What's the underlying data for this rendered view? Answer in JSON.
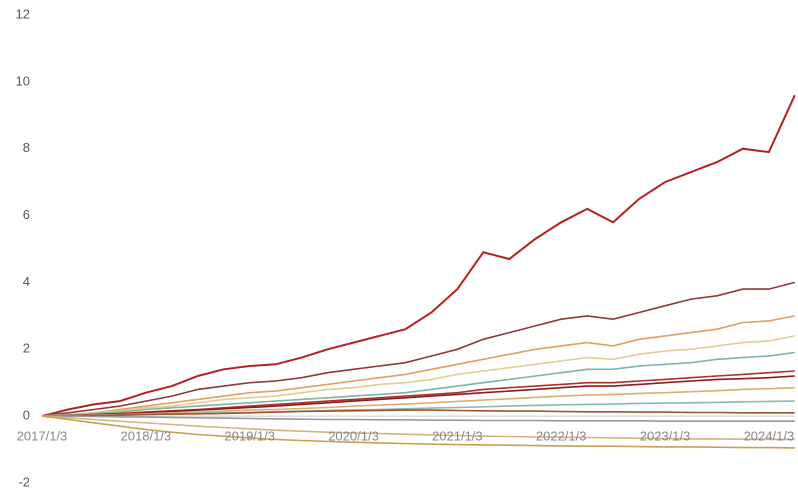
{
  "chart_data": {
    "type": "line",
    "x": [
      "2017/1/3",
      null,
      null,
      null,
      "2018/1/3",
      null,
      null,
      null,
      "2019/1/3",
      null,
      null,
      null,
      "2020/1/3",
      null,
      null,
      null,
      "2021/1/3",
      null,
      null,
      null,
      "2022/1/3",
      null,
      null,
      null,
      "2023/1/3",
      null,
      null,
      null,
      "2024/1/3",
      null
    ],
    "ylim": [
      -2,
      12
    ],
    "yticks": [
      -2,
      0,
      2,
      4,
      6,
      8,
      10,
      12
    ],
    "grid": false,
    "series": [
      {
        "color": "#b22222",
        "values": [
          0,
          0.2,
          0.35,
          0.45,
          0.7,
          0.9,
          1.2,
          1.4,
          1.5,
          1.55,
          1.75,
          2.0,
          2.2,
          2.4,
          2.6,
          3.1,
          3.8,
          4.9,
          4.7,
          5.3,
          5.8,
          6.2,
          5.8,
          6.5,
          7.0,
          7.3,
          7.6,
          8.0,
          7.9,
          9.6
        ]
      },
      {
        "color": "#8b3a3a",
        "values": [
          0,
          0.1,
          0.2,
          0.3,
          0.45,
          0.6,
          0.8,
          0.9,
          1.0,
          1.05,
          1.15,
          1.3,
          1.4,
          1.5,
          1.6,
          1.8,
          2.0,
          2.3,
          2.5,
          2.7,
          2.9,
          3.0,
          2.9,
          3.1,
          3.3,
          3.5,
          3.6,
          3.8,
          3.8,
          4.0
        ]
      },
      {
        "color": "#e0a060",
        "values": [
          0,
          0.05,
          0.1,
          0.2,
          0.3,
          0.4,
          0.5,
          0.6,
          0.7,
          0.75,
          0.85,
          0.95,
          1.05,
          1.15,
          1.25,
          1.4,
          1.55,
          1.7,
          1.85,
          2.0,
          2.1,
          2.2,
          2.1,
          2.3,
          2.4,
          2.5,
          2.6,
          2.8,
          2.85,
          3.0
        ]
      },
      {
        "color": "#e0d090",
        "values": [
          0,
          0.05,
          0.1,
          0.15,
          0.25,
          0.3,
          0.4,
          0.5,
          0.55,
          0.6,
          0.7,
          0.8,
          0.85,
          0.95,
          1.0,
          1.1,
          1.25,
          1.35,
          1.45,
          1.55,
          1.65,
          1.75,
          1.7,
          1.85,
          1.95,
          2.0,
          2.1,
          2.2,
          2.25,
          2.4
        ]
      },
      {
        "color": "#7fb3a8",
        "values": [
          0,
          0.03,
          0.08,
          0.12,
          0.2,
          0.25,
          0.3,
          0.35,
          0.4,
          0.45,
          0.5,
          0.55,
          0.6,
          0.65,
          0.7,
          0.8,
          0.9,
          1.0,
          1.1,
          1.2,
          1.3,
          1.4,
          1.4,
          1.5,
          1.55,
          1.6,
          1.7,
          1.75,
          1.8,
          1.9
        ]
      },
      {
        "color": "#b03030",
        "values": [
          0,
          0.02,
          0.05,
          0.08,
          0.12,
          0.16,
          0.2,
          0.25,
          0.3,
          0.35,
          0.4,
          0.45,
          0.5,
          0.55,
          0.6,
          0.65,
          0.7,
          0.8,
          0.85,
          0.9,
          0.95,
          1.0,
          1.0,
          1.05,
          1.1,
          1.15,
          1.2,
          1.25,
          1.3,
          1.35
        ]
      },
      {
        "color": "#8b1a1a",
        "values": [
          0,
          0.02,
          0.04,
          0.07,
          0.1,
          0.14,
          0.18,
          0.22,
          0.26,
          0.3,
          0.35,
          0.4,
          0.45,
          0.5,
          0.55,
          0.6,
          0.65,
          0.7,
          0.75,
          0.8,
          0.85,
          0.9,
          0.9,
          0.95,
          1.0,
          1.05,
          1.1,
          1.12,
          1.15,
          1.2
        ]
      },
      {
        "color": "#d8b070",
        "values": [
          0,
          0.01,
          0.03,
          0.05,
          0.07,
          0.1,
          0.12,
          0.15,
          0.18,
          0.2,
          0.23,
          0.26,
          0.3,
          0.33,
          0.36,
          0.4,
          0.44,
          0.48,
          0.52,
          0.56,
          0.6,
          0.63,
          0.65,
          0.68,
          0.7,
          0.73,
          0.76,
          0.8,
          0.82,
          0.85
        ]
      },
      {
        "color": "#8fb8b0",
        "values": [
          0,
          0.01,
          0.02,
          0.03,
          0.05,
          0.06,
          0.08,
          0.1,
          0.11,
          0.13,
          0.15,
          0.17,
          0.19,
          0.2,
          0.22,
          0.24,
          0.26,
          0.28,
          0.3,
          0.32,
          0.34,
          0.35,
          0.36,
          0.38,
          0.39,
          0.4,
          0.41,
          0.43,
          0.44,
          0.45
        ]
      },
      {
        "color": "#a0522d",
        "values": [
          0,
          0.01,
          0.02,
          0.03,
          0.05,
          0.06,
          0.07,
          0.08,
          0.1,
          0.12,
          0.14,
          0.15,
          0.16,
          0.17,
          0.18,
          0.18,
          0.17,
          0.16,
          0.15,
          0.15,
          0.14,
          0.13,
          0.13,
          0.12,
          0.12,
          0.11,
          0.11,
          0.1,
          0.1,
          0.1
        ]
      },
      {
        "color": "#999999",
        "values": [
          0,
          0,
          -0.01,
          -0.02,
          -0.03,
          -0.04,
          -0.05,
          -0.06,
          -0.07,
          -0.08,
          -0.09,
          -0.1,
          -0.1,
          -0.11,
          -0.11,
          -0.12,
          -0.12,
          -0.13,
          -0.13,
          -0.13,
          -0.14,
          -0.14,
          -0.14,
          -0.14,
          -0.15,
          -0.15,
          -0.15,
          -0.15,
          -0.15,
          -0.15
        ]
      },
      {
        "color": "#d4b483",
        "values": [
          0,
          -0.05,
          -0.1,
          -0.15,
          -0.2,
          -0.25,
          -0.3,
          -0.34,
          -0.38,
          -0.42,
          -0.45,
          -0.48,
          -0.5,
          -0.52,
          -0.54,
          -0.56,
          -0.58,
          -0.6,
          -0.61,
          -0.62,
          -0.63,
          -0.64,
          -0.65,
          -0.66,
          -0.67,
          -0.68,
          -0.68,
          -0.69,
          -0.69,
          -0.7
        ]
      },
      {
        "color": "#c8a050",
        "values": [
          0,
          -0.1,
          -0.2,
          -0.3,
          -0.4,
          -0.48,
          -0.55,
          -0.6,
          -0.65,
          -0.7,
          -0.73,
          -0.76,
          -0.78,
          -0.8,
          -0.82,
          -0.84,
          -0.85,
          -0.86,
          -0.87,
          -0.88,
          -0.89,
          -0.9,
          -0.9,
          -0.91,
          -0.92,
          -0.92,
          -0.93,
          -0.94,
          -0.94,
          -0.95
        ]
      }
    ]
  }
}
